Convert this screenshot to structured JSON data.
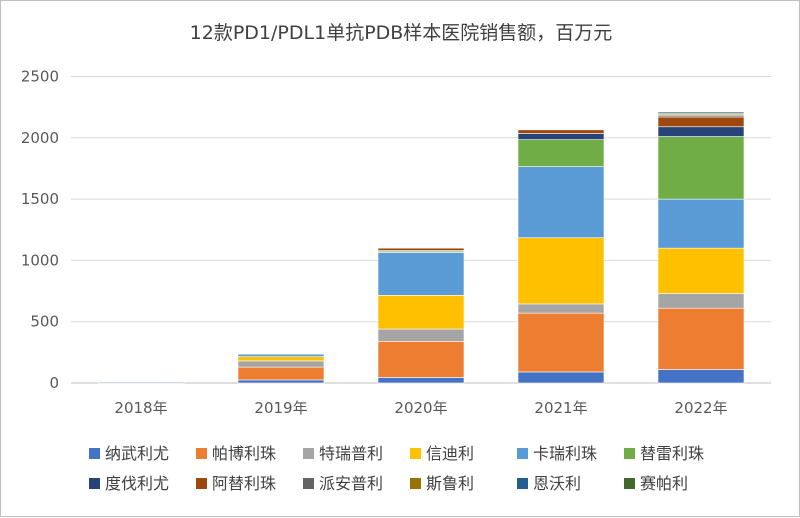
{
  "chart_data": {
    "type": "bar",
    "stacked": true,
    "title": "12款PD1/PDL1单抗PDB样本医院销售额，百万元",
    "xlabel": "",
    "ylabel": "",
    "ylim": [
      0,
      2500
    ],
    "yticks": [
      0,
      500,
      1000,
      1500,
      2000,
      2500
    ],
    "grid": true,
    "legend_position": "bottom",
    "categories": [
      "2018年",
      "2019年",
      "2020年",
      "2021年",
      "2022年"
    ],
    "series": [
      {
        "name": "纳武利尤",
        "color": "#4472C4",
        "values": [
          8,
          25,
          45,
          90,
          110
        ]
      },
      {
        "name": "帕博利珠",
        "color": "#ED7D31",
        "values": [
          5,
          105,
          295,
          480,
          500
        ]
      },
      {
        "name": "特瑞普利",
        "color": "#A5A5A5",
        "values": [
          0,
          50,
          100,
          75,
          120
        ]
      },
      {
        "name": "信迪利",
        "color": "#FFC000",
        "values": [
          0,
          35,
          275,
          540,
          370
        ]
      },
      {
        "name": "卡瑞利珠",
        "color": "#5B9BD5",
        "values": [
          0,
          20,
          350,
          580,
          400
        ]
      },
      {
        "name": "替雷利珠",
        "color": "#70AD47",
        "values": [
          0,
          5,
          10,
          220,
          510
        ]
      },
      {
        "name": "度伐利尤",
        "color": "#264478",
        "values": [
          0,
          0,
          5,
          50,
          80
        ]
      },
      {
        "name": "阿替利珠",
        "color": "#9E480E",
        "values": [
          0,
          0,
          20,
          30,
          80
        ]
      },
      {
        "name": "派安普利",
        "color": "#636363",
        "values": [
          0,
          0,
          0,
          0,
          10
        ]
      },
      {
        "name": "斯鲁利",
        "color": "#997300",
        "values": [
          0,
          0,
          0,
          0,
          10
        ]
      },
      {
        "name": "恩沃利",
        "color": "#255E91",
        "values": [
          0,
          0,
          0,
          0,
          10
        ]
      },
      {
        "name": "赛帕利",
        "color": "#43682B",
        "values": [
          0,
          0,
          0,
          0,
          10
        ]
      }
    ]
  }
}
